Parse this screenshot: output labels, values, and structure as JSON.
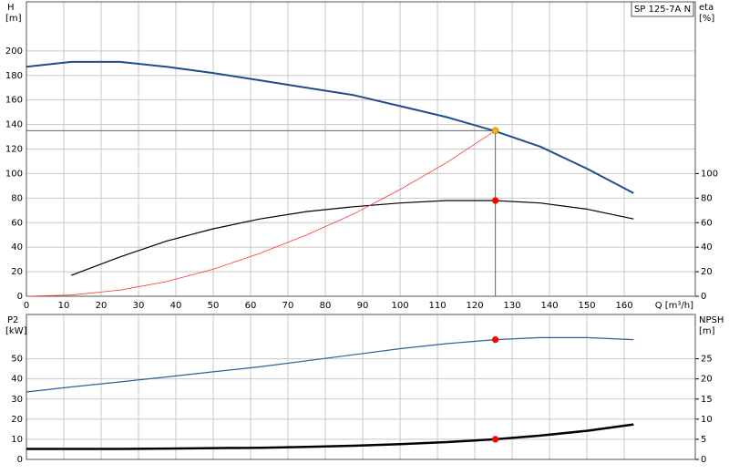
{
  "chart_data": [
    {
      "type": "line",
      "label": "SP 125-7A N",
      "ylabel": "H",
      "yunit": "[m]",
      "y2label": "eta",
      "y2unit": "[%]",
      "xlabel": "Q [m³/h]",
      "xlim": [
        0,
        179
      ],
      "xticks": [
        0,
        10,
        20,
        30,
        40,
        50,
        60,
        70,
        80,
        90,
        100,
        110,
        120,
        130,
        140,
        150,
        160
      ],
      "ylim": [
        0,
        240
      ],
      "yticks": [
        0,
        20,
        40,
        60,
        80,
        100,
        120,
        140,
        160,
        180,
        200
      ],
      "y2lim": [
        0,
        240
      ],
      "y2ticks": [
        0,
        20,
        40,
        60,
        80,
        100
      ],
      "grid": true,
      "series": [
        {
          "color": "#1f4e8c",
          "width": 2,
          "x": [
            0,
            12,
            25,
            37.5,
            50,
            62.5,
            75,
            87.5,
            100,
            112.5,
            125,
            137.5,
            150,
            162.5
          ],
          "values": [
            187,
            191,
            191,
            187,
            182,
            176,
            170,
            164,
            155,
            146,
            135,
            122,
            104,
            84
          ]
        },
        {
          "color": "#000000",
          "width": 1.2,
          "axis": "y2",
          "x": [
            12,
            25,
            37.5,
            50,
            62.5,
            75,
            87.5,
            100,
            112.5,
            125,
            137.5,
            150,
            162.5
          ],
          "values": [
            17,
            32,
            45,
            55,
            63,
            69,
            73,
            76,
            78,
            78,
            76,
            71,
            63
          ]
        },
        {
          "color": "#ff3333",
          "width": 0.8,
          "x": [
            0,
            12,
            25,
            37.5,
            50,
            62.5,
            75,
            87.5,
            100,
            112.5,
            125.5
          ],
          "values": [
            0,
            1,
            5,
            12,
            22,
            35,
            50,
            67,
            87,
            109,
            135
          ]
        }
      ],
      "markers": [
        {
          "x": 125.5,
          "y": 135,
          "color": "#f5b800"
        },
        {
          "x": 125.5,
          "y": 78,
          "color": "#ff0000",
          "axis": "y2"
        }
      ]
    },
    {
      "type": "line",
      "ylabel": "P2",
      "yunit": "[kW]",
      "y2label": "NPSH",
      "y2unit": "[m]",
      "xlim": [
        0,
        179
      ],
      "xticks": [
        0,
        10,
        20,
        30,
        40,
        50,
        60,
        70,
        80,
        90,
        100,
        110,
        120,
        130,
        140,
        150,
        160
      ],
      "xtick_labels": false,
      "ylim": [
        0,
        72
      ],
      "yticks": [
        0,
        10,
        20,
        30,
        40,
        50
      ],
      "y2lim": [
        0,
        36
      ],
      "y2ticks": [
        0,
        5,
        10,
        15,
        20,
        25
      ],
      "grid": true,
      "series": [
        {
          "color": "#2e5fa0",
          "width": 1.2,
          "x": [
            0,
            12,
            25,
            37.5,
            50,
            62.5,
            75,
            87.5,
            100,
            112.5,
            125.5,
            137.5,
            150,
            162.5
          ],
          "values": [
            33.5,
            36,
            38.5,
            41,
            43.5,
            46,
            49,
            52,
            55,
            57.5,
            59.5,
            60.5,
            60.5,
            59.5
          ]
        },
        {
          "color": "#000000",
          "width": 2.5,
          "axis": "y2",
          "x": [
            0,
            12,
            25,
            37.5,
            50,
            62.5,
            75,
            87.5,
            100,
            112.5,
            125.5,
            137.5,
            150,
            162.5
          ],
          "values": [
            2.6,
            2.6,
            2.6,
            2.7,
            2.8,
            2.9,
            3.1,
            3.4,
            3.8,
            4.3,
            5,
            5.9,
            7.1,
            8.7
          ]
        }
      ],
      "markers": [
        {
          "x": 125.5,
          "y": 59.5,
          "color": "#ff0000"
        },
        {
          "x": 125.5,
          "y": 5,
          "color": "#ff0000",
          "axis": "y2"
        }
      ]
    }
  ]
}
